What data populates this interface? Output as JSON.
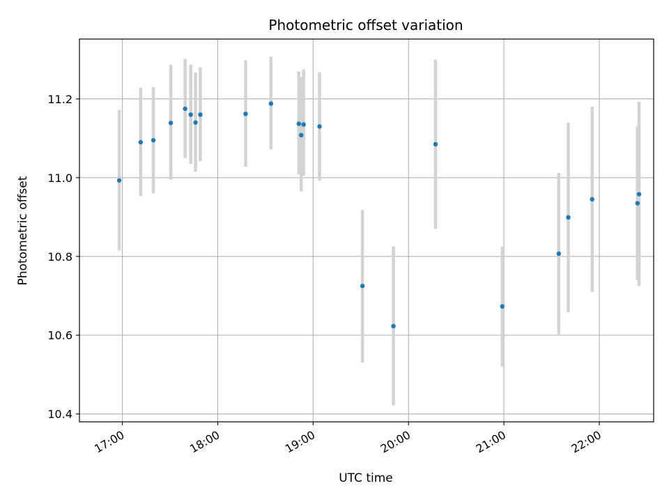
{
  "chart_data": {
    "type": "scatter",
    "title": "Photometric offset variation",
    "xlabel": "UTC time",
    "ylabel": "Photometric offset",
    "x_unit": "hours UTC",
    "xlim": [
      16.55,
      22.57
    ],
    "ylim": [
      10.38,
      11.352
    ],
    "grid": true,
    "x_ticks": [
      {
        "value": 17,
        "label": "17:00"
      },
      {
        "value": 18,
        "label": "18:00"
      },
      {
        "value": 19,
        "label": "19:00"
      },
      {
        "value": 20,
        "label": "20:00"
      },
      {
        "value": 21,
        "label": "21:00"
      },
      {
        "value": 22,
        "label": "22:00"
      }
    ],
    "y_ticks": [
      {
        "value": 10.4,
        "label": "10.4"
      },
      {
        "value": 10.6,
        "label": "10.6"
      },
      {
        "value": 10.8,
        "label": "10.8"
      },
      {
        "value": 11.0,
        "label": "11.0"
      },
      {
        "value": 11.2,
        "label": "11.2"
      }
    ],
    "colors": {
      "point": "#1f77b4",
      "errorbar": "#d3d3d3",
      "grid": "#b0b0b0",
      "axes": "#000000"
    },
    "series": [
      {
        "name": "offset",
        "points": [
          {
            "x": 16.967,
            "y": 10.993,
            "err_low": 10.815,
            "err_high": 11.172
          },
          {
            "x": 17.192,
            "y": 11.09,
            "err_low": 10.953,
            "err_high": 11.228
          },
          {
            "x": 17.325,
            "y": 11.095,
            "err_low": 10.96,
            "err_high": 11.23
          },
          {
            "x": 17.508,
            "y": 11.139,
            "err_low": 10.995,
            "err_high": 11.287
          },
          {
            "x": 17.658,
            "y": 11.175,
            "err_low": 11.05,
            "err_high": 11.302
          },
          {
            "x": 17.717,
            "y": 11.16,
            "err_low": 11.035,
            "err_high": 11.287
          },
          {
            "x": 17.767,
            "y": 11.14,
            "err_low": 11.015,
            "err_high": 11.267
          },
          {
            "x": 17.817,
            "y": 11.16,
            "err_low": 11.042,
            "err_high": 11.28
          },
          {
            "x": 18.292,
            "y": 11.162,
            "err_low": 11.028,
            "err_high": 11.298
          },
          {
            "x": 18.558,
            "y": 11.188,
            "err_low": 11.072,
            "err_high": 11.307
          },
          {
            "x": 18.85,
            "y": 11.137,
            "err_low": 11.008,
            "err_high": 11.27
          },
          {
            "x": 18.875,
            "y": 11.108,
            "err_low": 10.965,
            "err_high": 11.255
          },
          {
            "x": 18.9,
            "y": 11.135,
            "err_low": 11.005,
            "err_high": 11.275
          },
          {
            "x": 19.067,
            "y": 11.13,
            "err_low": 10.992,
            "err_high": 11.268
          },
          {
            "x": 19.517,
            "y": 10.725,
            "err_low": 10.53,
            "err_high": 10.918
          },
          {
            "x": 19.842,
            "y": 10.623,
            "err_low": 10.422,
            "err_high": 10.825
          },
          {
            "x": 20.283,
            "y": 11.085,
            "err_low": 10.87,
            "err_high": 11.3
          },
          {
            "x": 20.983,
            "y": 10.673,
            "err_low": 10.52,
            "err_high": 10.825
          },
          {
            "x": 21.575,
            "y": 10.807,
            "err_low": 10.602,
            "err_high": 11.012
          },
          {
            "x": 21.675,
            "y": 10.899,
            "err_low": 10.658,
            "err_high": 11.14
          },
          {
            "x": 21.925,
            "y": 10.945,
            "err_low": 10.71,
            "err_high": 11.18
          },
          {
            "x": 22.4,
            "y": 10.935,
            "err_low": 10.74,
            "err_high": 11.13
          },
          {
            "x": 22.417,
            "y": 10.958,
            "err_low": 10.725,
            "err_high": 11.193
          }
        ]
      }
    ]
  }
}
